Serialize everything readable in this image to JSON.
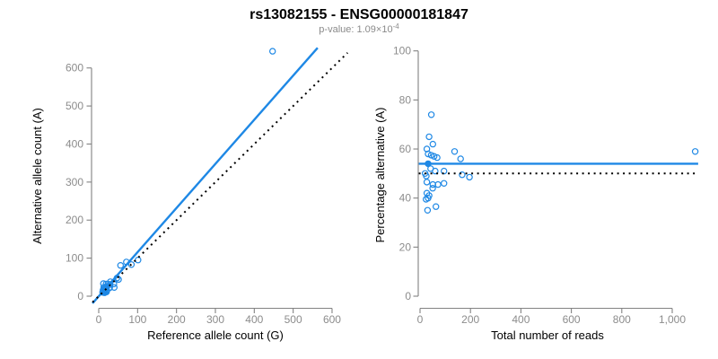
{
  "title": "rs13082155 - ENSG00000181847",
  "subtitle": {
    "text": "p-value: 1.09×10",
    "exponent": "-4"
  },
  "colors": {
    "accent_blue": "#1E88E5",
    "identity_black": "#000000",
    "axis_gray": "#828282",
    "tick_label_gray": "#8C8C8C",
    "title_black": "#000000"
  },
  "chart_data": [
    {
      "type": "scatter",
      "name": "alt-vs-ref-allele-counts",
      "xlabel": "Reference allele count (G)",
      "ylabel": "Alternative allele count (A)",
      "xlim": [
        0,
        600
      ],
      "ylim": [
        0,
        600
      ],
      "xticks": [
        0,
        100,
        200,
        300,
        400,
        500,
        600
      ],
      "xtick_labels": [
        "0",
        "100",
        "200",
        "300",
        "400",
        "500",
        "600"
      ],
      "yticks": [
        0,
        100,
        200,
        300,
        400,
        500,
        600
      ],
      "ytick_labels": [
        "0",
        "100",
        "200",
        "300",
        "400",
        "500",
        "600"
      ],
      "grid": false,
      "legend": null,
      "points": [
        [
          12,
          33
        ],
        [
          13,
          23
        ],
        [
          19,
          32
        ],
        [
          11,
          16
        ],
        [
          56,
          81
        ],
        [
          13,
          19
        ],
        [
          19,
          25
        ],
        [
          24,
          32
        ],
        [
          30,
          38
        ],
        [
          71,
          90
        ],
        [
          15,
          17
        ],
        [
          20,
          22
        ],
        [
          29,
          31
        ],
        [
          47,
          48
        ],
        [
          10,
          10
        ],
        [
          13,
          12
        ],
        [
          84,
          83
        ],
        [
          101,
          95
        ],
        [
          14,
          13
        ],
        [
          28,
          23
        ],
        [
          39,
          32
        ],
        [
          51,
          44
        ],
        [
          28,
          22
        ],
        [
          16,
          11
        ],
        [
          21,
          15
        ],
        [
          19,
          13
        ],
        [
          15,
          9
        ],
        [
          40,
          23
        ],
        [
          20,
          11
        ],
        [
          447,
          644
        ]
      ],
      "lines": [
        {
          "name": "fitted-proportion-line",
          "style": "solid",
          "color": "#1E88E5",
          "slope": 1.16,
          "intercept": 0
        },
        {
          "name": "identity-line",
          "style": "dotted",
          "color": "#000000",
          "slope": 1,
          "intercept": 0
        }
      ]
    },
    {
      "type": "scatter",
      "name": "percentage-alternative-vs-total-reads",
      "xlabel": "Total number of reads",
      "ylabel": "Percentage alternative (A)",
      "xlim": [
        0,
        1100
      ],
      "ylim": [
        0,
        100
      ],
      "xticks": [
        0,
        200,
        400,
        600,
        800,
        1000
      ],
      "xtick_labels": [
        "0",
        "200",
        "400",
        "600",
        "800",
        "1,000"
      ],
      "yticks": [
        0,
        20,
        40,
        60,
        80,
        100
      ],
      "ytick_labels": [
        "0",
        "20",
        "40",
        "60",
        "80",
        "100"
      ],
      "grid": false,
      "legend": null,
      "points": [
        [
          45,
          74
        ],
        [
          36,
          65
        ],
        [
          51,
          62
        ],
        [
          27,
          60
        ],
        [
          137,
          59
        ],
        [
          32,
          58
        ],
        [
          44,
          57.5
        ],
        [
          56,
          57
        ],
        [
          68,
          56.5
        ],
        [
          161,
          56
        ],
        [
          32,
          54
        ],
        [
          42,
          52
        ],
        [
          60,
          51
        ],
        [
          95,
          51
        ],
        [
          20,
          50
        ],
        [
          25,
          49
        ],
        [
          167,
          49.5
        ],
        [
          196,
          48.5
        ],
        [
          27,
          46.5
        ],
        [
          51,
          45.5
        ],
        [
          71,
          45.5
        ],
        [
          95,
          46
        ],
        [
          50,
          44
        ],
        [
          27,
          42
        ],
        [
          36,
          41
        ],
        [
          32,
          40
        ],
        [
          24,
          39.5
        ],
        [
          63,
          36.5
        ],
        [
          30,
          35
        ],
        [
          1091,
          59
        ]
      ],
      "mean_marker": [
        31,
        54
      ],
      "lines": [
        {
          "name": "mean-percentage-line",
          "style": "solid",
          "color": "#1E88E5",
          "value": 54
        },
        {
          "name": "fifty-percent-line",
          "style": "dotted",
          "color": "#000000",
          "value": 50
        }
      ]
    }
  ]
}
